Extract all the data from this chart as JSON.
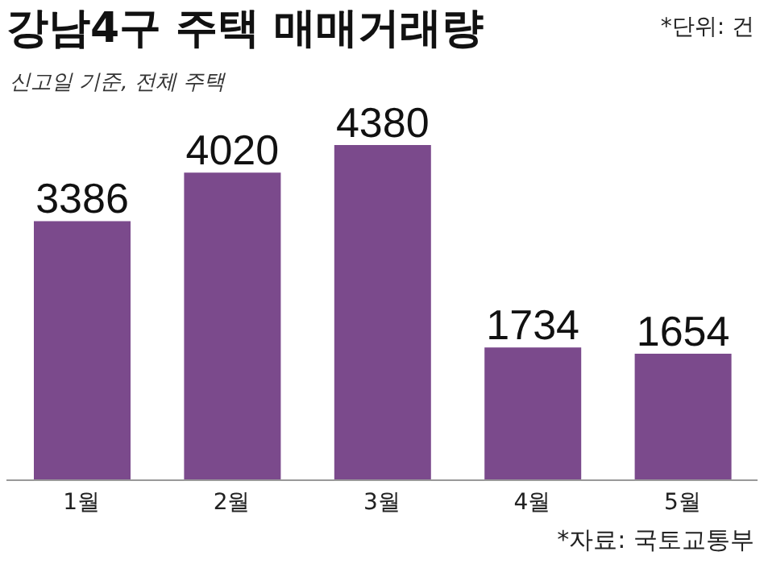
{
  "chart_data": {
    "type": "bar",
    "title": "강남4구 주택 매매거래량",
    "subtitle": "신고일 기준, 전체 주택",
    "annotations": [
      "*단위: 건",
      "*자료: 국토교통부"
    ],
    "categories": [
      "1월",
      "2월",
      "3월",
      "4월",
      "5월"
    ],
    "values": [
      3386,
      4020,
      4380,
      1734,
      1654
    ],
    "color": "#7b4a8c",
    "data_labels": true,
    "grid": false
  }
}
